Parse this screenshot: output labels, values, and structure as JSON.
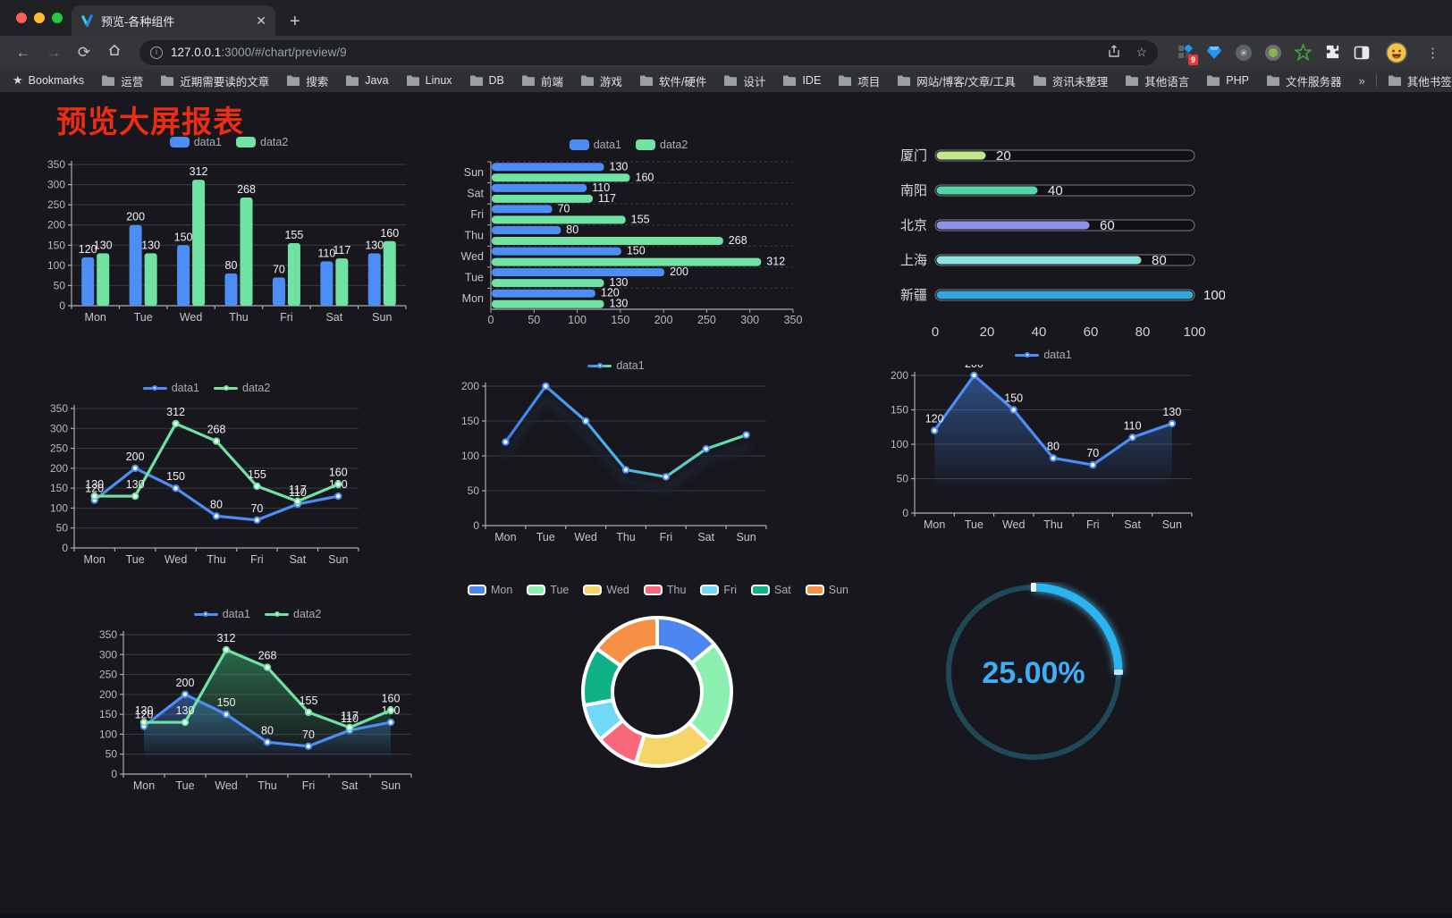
{
  "browser": {
    "tab_title": "预览-各种组件",
    "url_host": "127.0.0.1",
    "url_path": ":3000/#/chart/preview/9",
    "bookmarks_label": "Bookmarks",
    "folders": [
      "运营",
      "近期需要读的文章",
      "搜索",
      "Java",
      "Linux",
      "DB",
      "前端",
      "游戏",
      "软件/硬件",
      "设计",
      "IDE",
      "项目",
      "网站/博客/文章/工具",
      "资讯未整理",
      "其他语言",
      "PHP",
      "文件服务器"
    ],
    "overflow": "»",
    "other_bookmarks": "其他书签",
    "ext_badge": "9"
  },
  "page": {
    "title": "预览大屏报表",
    "title_color": "#ec2c14"
  },
  "chart_data": [
    {
      "id": "bar-grouped",
      "type": "vbar",
      "categories": [
        "Mon",
        "Tue",
        "Wed",
        "Thu",
        "Fri",
        "Sat",
        "Sun"
      ],
      "series": [
        {
          "name": "data1",
          "color": "#4C8DF6",
          "values": [
            120,
            200,
            150,
            80,
            70,
            110,
            130
          ]
        },
        {
          "name": "data2",
          "color": "#70E2A2",
          "values": [
            130,
            130,
            312,
            268,
            155,
            117,
            160
          ]
        }
      ],
      "ymax": 350,
      "ystep": 50,
      "labels": true,
      "legend_type": "rect"
    },
    {
      "id": "bar-horizontal",
      "type": "hbar",
      "categories": [
        "Mon",
        "Tue",
        "Wed",
        "Thu",
        "Fri",
        "Sat",
        "Sun"
      ],
      "series": [
        {
          "name": "data1",
          "color": "#4C8DF6",
          "values": [
            120,
            200,
            150,
            80,
            70,
            110,
            130
          ]
        },
        {
          "name": "data2",
          "color": "#70E2A2",
          "values": [
            130,
            130,
            312,
            268,
            155,
            117,
            160
          ]
        }
      ],
      "xmax": 350,
      "xstep": 50,
      "labels": true,
      "legend_type": "rect"
    },
    {
      "id": "progress",
      "type": "progress",
      "items": [
        {
          "label": "厦门",
          "value": 20,
          "color": "#C3E88D"
        },
        {
          "label": "南阳",
          "value": 40,
          "color": "#52D6A9"
        },
        {
          "label": "北京",
          "value": 60,
          "color": "#8C93E6"
        },
        {
          "label": "上海",
          "value": 80,
          "color": "#8BE3E0"
        },
        {
          "label": "新疆",
          "value": 100,
          "color": "#35A5DC"
        }
      ],
      "xmax": 100,
      "xticks": [
        0,
        20,
        40,
        60,
        80,
        100
      ]
    },
    {
      "id": "line-two",
      "type": "line",
      "categories": [
        "Mon",
        "Tue",
        "Wed",
        "Thu",
        "Fri",
        "Sat",
        "Sun"
      ],
      "series": [
        {
          "name": "data1",
          "color": "#4C8DF6",
          "values": [
            120,
            200,
            150,
            80,
            70,
            110,
            130
          ]
        },
        {
          "name": "data2",
          "color": "#70E2A2",
          "values": [
            130,
            130,
            312,
            268,
            155,
            117,
            160
          ]
        }
      ],
      "ymax": 350,
      "ystep": 50,
      "labels": true,
      "markers": true,
      "legend_type": "line"
    },
    {
      "id": "line-gradient",
      "type": "line",
      "categories": [
        "Mon",
        "Tue",
        "Wed",
        "Thu",
        "Fri",
        "Sat",
        "Sun"
      ],
      "series": [
        {
          "name": "data1",
          "color": "#4C8DF6",
          "gradient": [
            "#3D7EEB",
            "#4FB6E6",
            "#67E69C"
          ],
          "values": [
            120,
            200,
            150,
            80,
            70,
            110,
            130
          ]
        }
      ],
      "ymax": 200,
      "ystep": 50,
      "labels": false,
      "markers": true,
      "shadow": true,
      "legend_type": "line"
    },
    {
      "id": "line-area",
      "type": "line",
      "categories": [
        "Mon",
        "Tue",
        "Wed",
        "Thu",
        "Fri",
        "Sat",
        "Sun"
      ],
      "series": [
        {
          "name": "data1",
          "color": "#4C8DF6",
          "area_from": "rgba(70,130,230,0.50)",
          "area_to": "rgba(70,130,230,0)",
          "values": [
            120,
            200,
            150,
            80,
            70,
            110,
            130
          ]
        }
      ],
      "ymax": 200,
      "ystep": 50,
      "labels": true,
      "markers": true,
      "legend_type": "line"
    },
    {
      "id": "area-two",
      "type": "line",
      "categories": [
        "Mon",
        "Tue",
        "Wed",
        "Thu",
        "Fri",
        "Sat",
        "Sun"
      ],
      "series": [
        {
          "name": "data1",
          "color": "#4C8DF6",
          "area_from": "rgba(70,130,230,0.50)",
          "area_to": "rgba(70,130,230,0)",
          "values": [
            120,
            200,
            150,
            80,
            70,
            110,
            130
          ]
        },
        {
          "name": "data2",
          "color": "#70E2A2",
          "area_from": "rgba(60,170,110,0.55)",
          "area_to": "rgba(60,170,110,0)",
          "values": [
            130,
            130,
            312,
            268,
            155,
            117,
            160
          ]
        }
      ],
      "ymax": 350,
      "ystep": 50,
      "labels": true,
      "markers": true,
      "legend_type": "line"
    },
    {
      "id": "donut",
      "type": "donut",
      "categories": [
        "Mon",
        "Tue",
        "Wed",
        "Thu",
        "Fri",
        "Sat",
        "Sun"
      ],
      "values": [
        120,
        200,
        150,
        80,
        70,
        110,
        130
      ],
      "colors": [
        "#4C86F0",
        "#8BEFB0",
        "#F5D565",
        "#F9687A",
        "#6FD9F7",
        "#0FB284",
        "#F59044"
      ],
      "legend_type": "rect-border"
    },
    {
      "id": "gauge",
      "type": "gauge",
      "value": 25,
      "label": "25.00%",
      "color": "#29B5F2",
      "track": "#1E4A57",
      "text_color": "#3FAEF5"
    }
  ]
}
